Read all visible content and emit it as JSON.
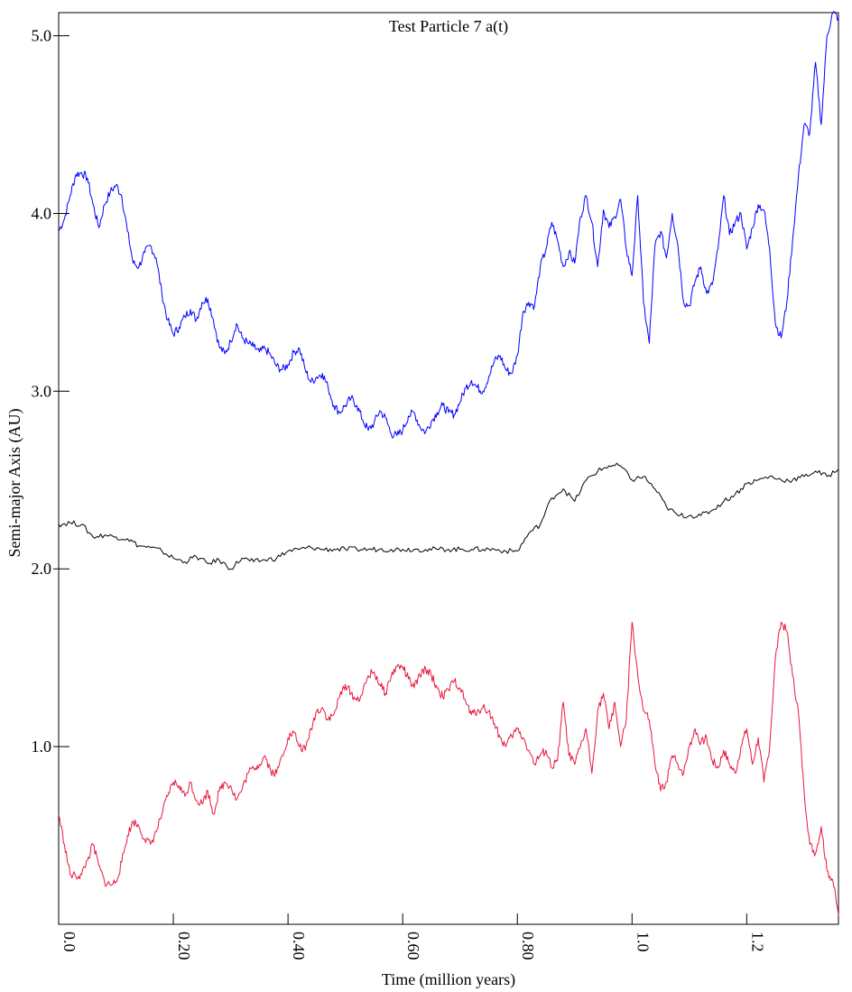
{
  "chart_data": {
    "type": "line",
    "title": "Test Particle 7 a(t)",
    "xlabel": "Time (million years)",
    "ylabel": "Semi-major Axis (AU)",
    "xlim": [
      0.0,
      1.36
    ],
    "ylim": [
      0.0,
      5.13
    ],
    "grid": false,
    "legend": "none",
    "x_ticks": [
      {
        "value": 0.0,
        "label": "0.0"
      },
      {
        "value": 0.2,
        "label": "0.20"
      },
      {
        "value": 0.4,
        "label": "0.40"
      },
      {
        "value": 0.6,
        "label": "0.60"
      },
      {
        "value": 0.8,
        "label": "0.80"
      },
      {
        "value": 1.0,
        "label": "1.0"
      },
      {
        "value": 1.2,
        "label": "1.2"
      }
    ],
    "y_ticks": [
      {
        "value": 1.0,
        "label": "1.0"
      },
      {
        "value": 2.0,
        "label": "2.0"
      },
      {
        "value": 3.0,
        "label": "3.0"
      },
      {
        "value": 4.0,
        "label": "4.0"
      },
      {
        "value": 5.0,
        "label": "5.0"
      }
    ],
    "series": [
      {
        "color": "#0000ff",
        "x": [
          0.0,
          0.01,
          0.02,
          0.03,
          0.04,
          0.05,
          0.06,
          0.07,
          0.08,
          0.09,
          0.1,
          0.11,
          0.12,
          0.13,
          0.14,
          0.15,
          0.16,
          0.17,
          0.18,
          0.19,
          0.2,
          0.21,
          0.22,
          0.23,
          0.24,
          0.25,
          0.26,
          0.27,
          0.28,
          0.29,
          0.3,
          0.31,
          0.32,
          0.33,
          0.34,
          0.35,
          0.36,
          0.37,
          0.38,
          0.39,
          0.4,
          0.41,
          0.42,
          0.43,
          0.44,
          0.45,
          0.46,
          0.47,
          0.48,
          0.49,
          0.5,
          0.51,
          0.52,
          0.53,
          0.54,
          0.55,
          0.56,
          0.57,
          0.58,
          0.59,
          0.6,
          0.61,
          0.62,
          0.63,
          0.64,
          0.65,
          0.66,
          0.67,
          0.68,
          0.69,
          0.7,
          0.71,
          0.72,
          0.73,
          0.74,
          0.75,
          0.76,
          0.77,
          0.78,
          0.79,
          0.8,
          0.81,
          0.82,
          0.83,
          0.84,
          0.85,
          0.86,
          0.87,
          0.88,
          0.89,
          0.9,
          0.91,
          0.92,
          0.93,
          0.94,
          0.95,
          0.96,
          0.97,
          0.98,
          0.99,
          1.0,
          1.01,
          1.02,
          1.03,
          1.04,
          1.05,
          1.06,
          1.07,
          1.08,
          1.09,
          1.1,
          1.11,
          1.12,
          1.13,
          1.14,
          1.15,
          1.16,
          1.17,
          1.18,
          1.19,
          1.2,
          1.21,
          1.22,
          1.23,
          1.24,
          1.25,
          1.26,
          1.27,
          1.28,
          1.29,
          1.3,
          1.31,
          1.32,
          1.33,
          1.34,
          1.35,
          1.36
        ],
        "values": [
          3.9,
          3.97,
          4.1,
          4.22,
          4.23,
          4.2,
          4.05,
          3.92,
          4.05,
          4.12,
          4.16,
          4.1,
          3.9,
          3.72,
          3.7,
          3.78,
          3.82,
          3.75,
          3.55,
          3.4,
          3.32,
          3.36,
          3.42,
          3.46,
          3.4,
          3.5,
          3.52,
          3.4,
          3.25,
          3.21,
          3.28,
          3.38,
          3.3,
          3.27,
          3.25,
          3.22,
          3.24,
          3.2,
          3.14,
          3.12,
          3.15,
          3.22,
          3.24,
          3.12,
          3.05,
          3.08,
          3.1,
          3.02,
          2.92,
          2.88,
          2.92,
          2.96,
          2.92,
          2.84,
          2.78,
          2.82,
          2.89,
          2.85,
          2.76,
          2.75,
          2.78,
          2.86,
          2.88,
          2.8,
          2.77,
          2.83,
          2.88,
          2.92,
          2.88,
          2.87,
          2.94,
          3.02,
          3.06,
          3.02,
          3.0,
          3.08,
          3.17,
          3.2,
          3.12,
          3.1,
          3.2,
          3.45,
          3.5,
          3.48,
          3.7,
          3.8,
          3.95,
          3.85,
          3.7,
          3.78,
          3.72,
          3.98,
          4.1,
          3.95,
          3.7,
          4.02,
          3.92,
          3.98,
          4.08,
          3.8,
          3.65,
          4.1,
          3.5,
          3.27,
          3.82,
          3.9,
          3.75,
          4.0,
          3.82,
          3.5,
          3.48,
          3.62,
          3.7,
          3.55,
          3.6,
          3.8,
          4.1,
          3.88,
          3.95,
          4.0,
          3.8,
          3.92,
          4.05,
          4.02,
          3.8,
          3.38,
          3.3,
          3.5,
          3.85,
          4.2,
          4.5,
          4.45,
          4.85,
          4.5,
          5.0,
          5.13,
          5.1
        ]
      },
      {
        "color": "#000000",
        "x": [
          0.0,
          0.02,
          0.04,
          0.06,
          0.08,
          0.1,
          0.12,
          0.14,
          0.16,
          0.18,
          0.2,
          0.22,
          0.24,
          0.26,
          0.28,
          0.3,
          0.32,
          0.34,
          0.36,
          0.38,
          0.4,
          0.42,
          0.44,
          0.46,
          0.48,
          0.5,
          0.52,
          0.54,
          0.56,
          0.58,
          0.6,
          0.62,
          0.64,
          0.66,
          0.68,
          0.7,
          0.72,
          0.74,
          0.76,
          0.78,
          0.8,
          0.82,
          0.84,
          0.86,
          0.88,
          0.9,
          0.92,
          0.94,
          0.96,
          0.98,
          1.0,
          1.02,
          1.04,
          1.06,
          1.08,
          1.1,
          1.12,
          1.14,
          1.16,
          1.18,
          1.2,
          1.22,
          1.24,
          1.26,
          1.28,
          1.3,
          1.32,
          1.34,
          1.36
        ],
        "values": [
          2.25,
          2.26,
          2.25,
          2.18,
          2.19,
          2.18,
          2.17,
          2.13,
          2.12,
          2.1,
          2.06,
          2.04,
          2.07,
          2.03,
          2.05,
          2.0,
          2.06,
          2.04,
          2.05,
          2.06,
          2.1,
          2.11,
          2.12,
          2.11,
          2.11,
          2.11,
          2.11,
          2.11,
          2.11,
          2.11,
          2.11,
          2.11,
          2.11,
          2.11,
          2.11,
          2.11,
          2.11,
          2.11,
          2.11,
          2.1,
          2.1,
          2.2,
          2.25,
          2.4,
          2.45,
          2.38,
          2.5,
          2.55,
          2.58,
          2.58,
          2.5,
          2.52,
          2.45,
          2.35,
          2.3,
          2.3,
          2.3,
          2.33,
          2.38,
          2.42,
          2.48,
          2.5,
          2.52,
          2.5,
          2.5,
          2.52,
          2.55,
          2.52,
          2.56
        ]
      },
      {
        "color": "#e8163c",
        "x": [
          0.0,
          0.01,
          0.02,
          0.03,
          0.04,
          0.05,
          0.06,
          0.07,
          0.08,
          0.09,
          0.1,
          0.11,
          0.12,
          0.13,
          0.14,
          0.15,
          0.16,
          0.17,
          0.18,
          0.19,
          0.2,
          0.21,
          0.22,
          0.23,
          0.24,
          0.25,
          0.26,
          0.27,
          0.28,
          0.29,
          0.3,
          0.31,
          0.32,
          0.33,
          0.34,
          0.35,
          0.36,
          0.37,
          0.38,
          0.39,
          0.4,
          0.41,
          0.42,
          0.43,
          0.44,
          0.45,
          0.46,
          0.47,
          0.48,
          0.49,
          0.5,
          0.51,
          0.52,
          0.53,
          0.54,
          0.55,
          0.56,
          0.57,
          0.58,
          0.59,
          0.6,
          0.61,
          0.62,
          0.63,
          0.64,
          0.65,
          0.66,
          0.67,
          0.68,
          0.69,
          0.7,
          0.71,
          0.72,
          0.73,
          0.74,
          0.75,
          0.76,
          0.77,
          0.78,
          0.79,
          0.8,
          0.81,
          0.82,
          0.83,
          0.84,
          0.85,
          0.86,
          0.87,
          0.88,
          0.89,
          0.9,
          0.91,
          0.92,
          0.93,
          0.94,
          0.95,
          0.96,
          0.97,
          0.98,
          0.99,
          1.0,
          1.01,
          1.02,
          1.03,
          1.04,
          1.05,
          1.06,
          1.07,
          1.08,
          1.09,
          1.1,
          1.11,
          1.12,
          1.13,
          1.14,
          1.15,
          1.16,
          1.17,
          1.18,
          1.19,
          1.2,
          1.21,
          1.22,
          1.23,
          1.24,
          1.25,
          1.26,
          1.27,
          1.28,
          1.29,
          1.3,
          1.31,
          1.32,
          1.33,
          1.34,
          1.35,
          1.36
        ],
        "values": [
          0.62,
          0.45,
          0.28,
          0.27,
          0.28,
          0.36,
          0.45,
          0.33,
          0.24,
          0.22,
          0.24,
          0.35,
          0.5,
          0.58,
          0.55,
          0.48,
          0.45,
          0.52,
          0.62,
          0.72,
          0.8,
          0.78,
          0.72,
          0.8,
          0.7,
          0.68,
          0.75,
          0.62,
          0.75,
          0.8,
          0.78,
          0.7,
          0.76,
          0.85,
          0.88,
          0.9,
          0.95,
          0.86,
          0.85,
          0.95,
          1.05,
          1.08,
          1.0,
          0.98,
          1.1,
          1.2,
          1.22,
          1.15,
          1.18,
          1.28,
          1.35,
          1.3,
          1.26,
          1.3,
          1.4,
          1.42,
          1.35,
          1.3,
          1.4,
          1.45,
          1.45,
          1.38,
          1.33,
          1.4,
          1.44,
          1.4,
          1.33,
          1.28,
          1.32,
          1.37,
          1.33,
          1.25,
          1.18,
          1.2,
          1.22,
          1.2,
          1.13,
          1.05,
          1.0,
          1.06,
          1.1,
          1.05,
          0.98,
          0.9,
          0.95,
          0.98,
          0.88,
          0.92,
          1.25,
          0.95,
          0.9,
          1.0,
          1.1,
          0.85,
          1.2,
          1.3,
          1.1,
          1.25,
          1.0,
          1.15,
          1.7,
          1.4,
          1.2,
          1.15,
          0.9,
          0.75,
          0.8,
          0.95,
          0.9,
          0.85,
          1.0,
          1.1,
          1.02,
          1.05,
          0.92,
          0.88,
          0.98,
          0.9,
          0.85,
          1.0,
          1.1,
          0.9,
          1.05,
          0.8,
          1.0,
          1.5,
          1.7,
          1.65,
          1.4,
          1.2,
          0.75,
          0.45,
          0.4,
          0.55,
          0.3,
          0.25,
          0.05
        ]
      }
    ]
  }
}
